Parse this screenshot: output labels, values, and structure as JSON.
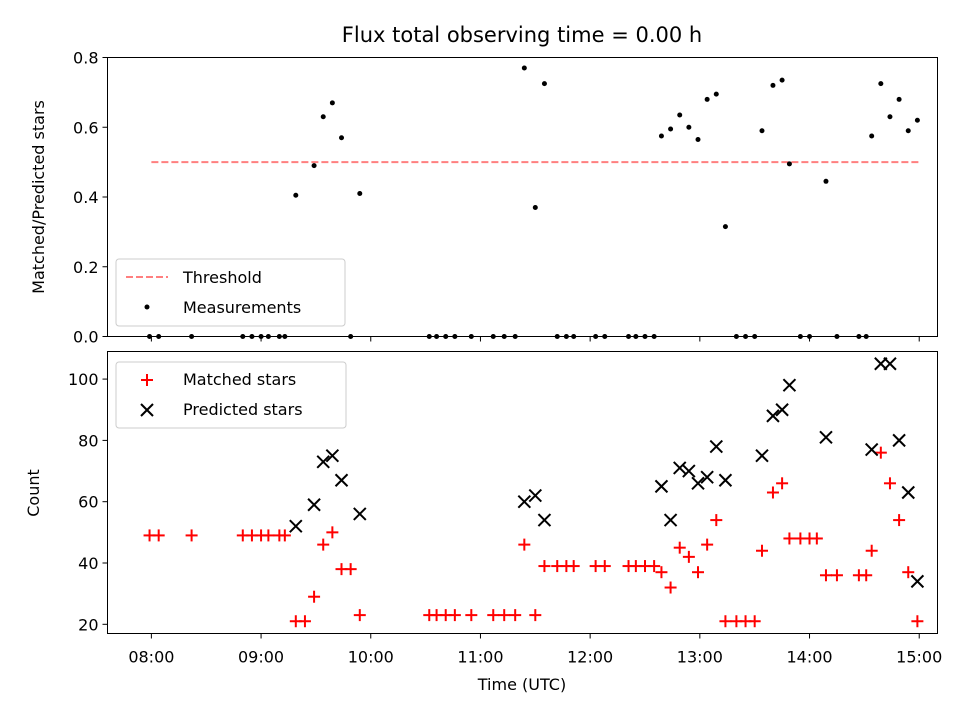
{
  "chart_data": [
    {
      "type": "scatter",
      "title": "Flux total observing time = 0.00 h",
      "xlabel": "",
      "ylabel": "Matched/Predicted stars",
      "ylim": [
        0,
        0.8
      ],
      "yticks": [
        "0.0",
        "0.2",
        "0.4",
        "0.6",
        "0.8"
      ],
      "threshold": {
        "name": "Threshold",
        "value": 0.5,
        "x_start": "08:00",
        "x_end": "15:00",
        "color": "#ff7f7f",
        "style": "dashed"
      },
      "legend": {
        "placement": "lower-left",
        "entries": [
          "Threshold",
          "Measurements"
        ]
      },
      "series": [
        {
          "name": "Measurements",
          "color": "#000000",
          "marker": "dot",
          "points": [
            [
              "07:59",
              0
            ],
            [
              "08:04",
              0
            ],
            [
              "08:22",
              0
            ],
            [
              "08:50",
              0
            ],
            [
              "08:55",
              0
            ],
            [
              "09:00",
              0
            ],
            [
              "09:04",
              0
            ],
            [
              "09:10",
              0
            ],
            [
              "09:13",
              0
            ],
            [
              "09:19",
              0.405
            ],
            [
              "09:29",
              0.49
            ],
            [
              "09:34",
              0.63
            ],
            [
              "09:39",
              0.67
            ],
            [
              "09:44",
              0.57
            ],
            [
              "09:49",
              0
            ],
            [
              "09:54",
              0.41
            ],
            [
              "10:32",
              0
            ],
            [
              "10:36",
              0
            ],
            [
              "10:41",
              0
            ],
            [
              "10:46",
              0
            ],
            [
              "10:55",
              0
            ],
            [
              "11:07",
              0
            ],
            [
              "11:13",
              0
            ],
            [
              "11:19",
              0
            ],
            [
              "11:24",
              0.77
            ],
            [
              "11:30",
              0.37
            ],
            [
              "11:35",
              0.725
            ],
            [
              "11:42",
              0
            ],
            [
              "11:47",
              0
            ],
            [
              "11:51",
              0
            ],
            [
              "12:03",
              0
            ],
            [
              "12:08",
              0
            ],
            [
              "12:21",
              0
            ],
            [
              "12:25",
              0
            ],
            [
              "12:30",
              0
            ],
            [
              "12:35",
              0
            ],
            [
              "12:39",
              0.575
            ],
            [
              "12:44",
              0.595
            ],
            [
              "12:49",
              0.635
            ],
            [
              "12:54",
              0.6
            ],
            [
              "12:59",
              0.565
            ],
            [
              "13:04",
              0.68
            ],
            [
              "13:09",
              0.695
            ],
            [
              "13:14",
              0.315
            ],
            [
              "13:20",
              0
            ],
            [
              "13:25",
              0
            ],
            [
              "13:30",
              0
            ],
            [
              "13:34",
              0.59
            ],
            [
              "13:40",
              0.72
            ],
            [
              "13:45",
              0.735
            ],
            [
              "13:49",
              0.495
            ],
            [
              "13:55",
              0
            ],
            [
              "14:00",
              0
            ],
            [
              "14:09",
              0.445
            ],
            [
              "14:15",
              0
            ],
            [
              "14:27",
              0
            ],
            [
              "14:31",
              0
            ],
            [
              "14:34",
              0.575
            ],
            [
              "14:39",
              0.725
            ],
            [
              "14:44",
              0.63
            ],
            [
              "14:49",
              0.68
            ],
            [
              "14:54",
              0.59
            ],
            [
              "14:59",
              0.62
            ]
          ]
        }
      ]
    },
    {
      "type": "scatter",
      "title": "",
      "xlabel": "Time (UTC)",
      "ylabel": "Count",
      "ylim": [
        17,
        109
      ],
      "yticks": [
        "20",
        "40",
        "60",
        "80",
        "100"
      ],
      "xlim": [
        "07:36",
        "15:10"
      ],
      "xticks": [
        "08:00",
        "09:00",
        "10:00",
        "11:00",
        "12:00",
        "13:00",
        "14:00",
        "15:00"
      ],
      "legend": {
        "placement": "upper-left",
        "entries": [
          "Matched stars",
          "Predicted stars"
        ]
      },
      "series": [
        {
          "name": "Matched stars",
          "color": "#ff0000",
          "marker": "plus",
          "points": [
            [
              "07:59",
              49
            ],
            [
              "08:04",
              49
            ],
            [
              "08:22",
              49
            ],
            [
              "08:50",
              49
            ],
            [
              "08:55",
              49
            ],
            [
              "09:00",
              49
            ],
            [
              "09:04",
              49
            ],
            [
              "09:10",
              49
            ],
            [
              "09:13",
              49
            ],
            [
              "09:19",
              21
            ],
            [
              "09:24",
              21
            ],
            [
              "09:29",
              29
            ],
            [
              "09:34",
              46
            ],
            [
              "09:39",
              50
            ],
            [
              "09:44",
              38
            ],
            [
              "09:49",
              38
            ],
            [
              "09:54",
              23
            ],
            [
              "10:32",
              23
            ],
            [
              "10:36",
              23
            ],
            [
              "10:41",
              23
            ],
            [
              "10:46",
              23
            ],
            [
              "10:55",
              23
            ],
            [
              "11:07",
              23
            ],
            [
              "11:13",
              23
            ],
            [
              "11:19",
              23
            ],
            [
              "11:24",
              46
            ],
            [
              "11:30",
              23
            ],
            [
              "11:35",
              39
            ],
            [
              "11:42",
              39
            ],
            [
              "11:47",
              39
            ],
            [
              "11:51",
              39
            ],
            [
              "12:03",
              39
            ],
            [
              "12:08",
              39
            ],
            [
              "12:21",
              39
            ],
            [
              "12:25",
              39
            ],
            [
              "12:30",
              39
            ],
            [
              "12:35",
              39
            ],
            [
              "12:39",
              37
            ],
            [
              "12:44",
              32
            ],
            [
              "12:49",
              45
            ],
            [
              "12:54",
              42
            ],
            [
              "12:59",
              37
            ],
            [
              "13:04",
              46
            ],
            [
              "13:09",
              54
            ],
            [
              "13:14",
              21
            ],
            [
              "13:20",
              21
            ],
            [
              "13:25",
              21
            ],
            [
              "13:30",
              21
            ],
            [
              "13:34",
              44
            ],
            [
              "13:40",
              63
            ],
            [
              "13:45",
              66
            ],
            [
              "13:49",
              48
            ],
            [
              "13:55",
              48
            ],
            [
              "14:00",
              48
            ],
            [
              "14:04",
              48
            ],
            [
              "14:09",
              36
            ],
            [
              "14:15",
              36
            ],
            [
              "14:27",
              36
            ],
            [
              "14:31",
              36
            ],
            [
              "14:34",
              44
            ],
            [
              "14:39",
              76
            ],
            [
              "14:44",
              66
            ],
            [
              "14:49",
              54
            ],
            [
              "14:54",
              37
            ],
            [
              "14:59",
              21
            ]
          ]
        },
        {
          "name": "Predicted stars",
          "color": "#000000",
          "marker": "x",
          "points": [
            [
              "09:19",
              52
            ],
            [
              "09:29",
              59
            ],
            [
              "09:34",
              73
            ],
            [
              "09:39",
              75
            ],
            [
              "09:44",
              67
            ],
            [
              "09:54",
              56
            ],
            [
              "11:24",
              60
            ],
            [
              "11:30",
              62
            ],
            [
              "11:35",
              54
            ],
            [
              "12:39",
              65
            ],
            [
              "12:44",
              54
            ],
            [
              "12:49",
              71
            ],
            [
              "12:54",
              70
            ],
            [
              "12:59",
              66
            ],
            [
              "13:04",
              68
            ],
            [
              "13:09",
              78
            ],
            [
              "13:14",
              67
            ],
            [
              "13:34",
              75
            ],
            [
              "13:40",
              88
            ],
            [
              "13:45",
              90
            ],
            [
              "13:49",
              98
            ],
            [
              "14:09",
              81
            ],
            [
              "14:34",
              77
            ],
            [
              "14:39",
              105
            ],
            [
              "14:44",
              105
            ],
            [
              "14:49",
              80
            ],
            [
              "14:54",
              63
            ],
            [
              "14:59",
              34
            ]
          ]
        }
      ]
    }
  ]
}
